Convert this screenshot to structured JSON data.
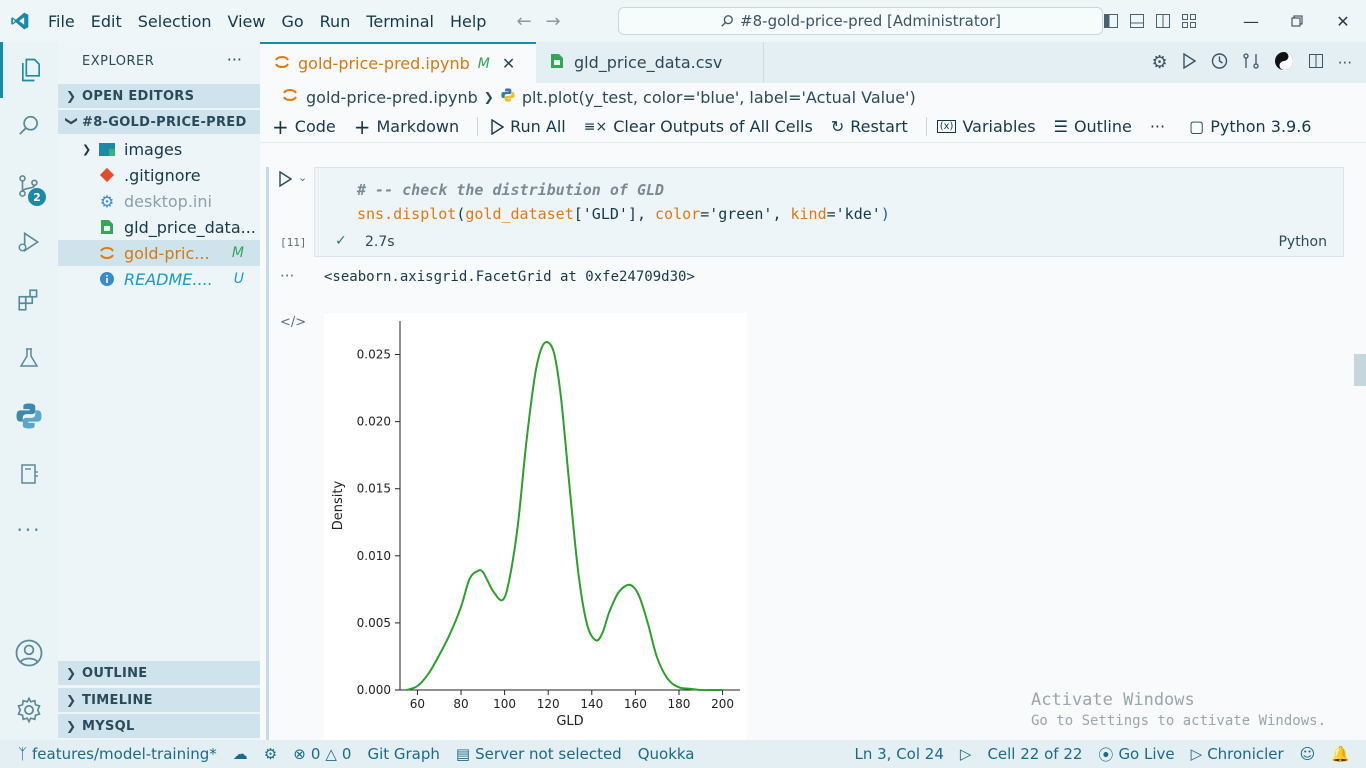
{
  "titlebar": {
    "menu": [
      "File",
      "Edit",
      "Selection",
      "View",
      "Go",
      "Run",
      "Terminal",
      "Help"
    ],
    "search_text": "#8-gold-price-pred [Administrator]"
  },
  "activity": {
    "scm_badge": "2"
  },
  "explorer": {
    "title": "EXPLORER",
    "open_editors": "OPEN EDITORS",
    "folder": "#8-GOLD-PRICE-PRED",
    "items": [
      {
        "label": "images",
        "status": ""
      },
      {
        "label": ".gitignore",
        "status": ""
      },
      {
        "label": "desktop.ini",
        "status": ""
      },
      {
        "label": "gld_price_data...",
        "status": ""
      },
      {
        "label": "gold-pric...",
        "status": "M"
      },
      {
        "label": "README....",
        "status": "U"
      }
    ],
    "outline": "OUTLINE",
    "timeline": "TIMELINE",
    "mysql": "MYSQL"
  },
  "tabs": [
    {
      "label": "gold-price-pred.ipynb",
      "status": "M"
    },
    {
      "label": "gld_price_data.csv"
    }
  ],
  "breadcrumb": {
    "file": "gold-price-pred.ipynb",
    "symbol": "plt.plot(y_test, color='blue', label='Actual Value')"
  },
  "toolbar": {
    "code": "Code",
    "markdown": "Markdown",
    "run_all": "Run All",
    "clear": "Clear Outputs of All Cells",
    "restart": "Restart",
    "variables": "Variables",
    "outline": "Outline",
    "kernel": "Python 3.9.6"
  },
  "cell": {
    "comment": "# -- check the distribution of GLD",
    "code": {
      "fn": "sns.displot",
      "open": "(",
      "var": "gold_dataset",
      "idx_open": "[",
      "str1": "'GLD'",
      "idx_close": "]",
      "sep1": ", ",
      "kw1": "color",
      "eq1": "=",
      "str2": "'green'",
      "sep2": ", ",
      "kw2": "kind",
      "eq2": "=",
      "str3": "'kde'",
      "close": ")"
    },
    "exec_count": "[11]",
    "duration": "2.7s",
    "language": "Python"
  },
  "output": {
    "text": "<seaborn.axisgrid.FacetGrid at 0xfe24709d30>"
  },
  "chart_data": {
    "type": "line",
    "title": "",
    "xlabel": "GLD",
    "ylabel": "Density",
    "xlim": [
      52,
      208
    ],
    "ylim": [
      0,
      0.0275
    ],
    "xticks": [
      60,
      80,
      100,
      120,
      140,
      160,
      180,
      200
    ],
    "yticks": [
      "0.000",
      "0.005",
      "0.010",
      "0.015",
      "0.020",
      "0.025"
    ],
    "grid": false,
    "color": "#2ca02c",
    "x": [
      55,
      60,
      65,
      70,
      75,
      80,
      84,
      88,
      90,
      92,
      95,
      99,
      102,
      106,
      110,
      114,
      117,
      120,
      123,
      126,
      130,
      134,
      138,
      142,
      145,
      148,
      152,
      156,
      159,
      162,
      166,
      170,
      175,
      180,
      185,
      190,
      195,
      200
    ],
    "y": [
      0.0,
      0.0003,
      0.0012,
      0.0026,
      0.0042,
      0.0062,
      0.0083,
      0.0089,
      0.0088,
      0.0082,
      0.0073,
      0.0067,
      0.0081,
      0.0122,
      0.0185,
      0.0235,
      0.0255,
      0.0259,
      0.0249,
      0.0216,
      0.0148,
      0.0085,
      0.0048,
      0.0037,
      0.0043,
      0.0058,
      0.0072,
      0.0078,
      0.0077,
      0.0069,
      0.0048,
      0.0024,
      0.0008,
      0.0002,
      0.0001,
      0.0,
      0.0,
      0.0
    ]
  },
  "watermark": {
    "line1": "Activate Windows",
    "line2": "Go to Settings to activate Windows."
  },
  "status": {
    "branch": "features/model-training*",
    "errors": "0",
    "warnings": "0",
    "git_graph": "Git Graph",
    "server": "Server not selected",
    "quokka": "Quokka",
    "position": "Ln 3, Col 24",
    "cell": "Cell 22 of 22",
    "go_live": "Go Live",
    "chronicler": "Chronicler"
  }
}
